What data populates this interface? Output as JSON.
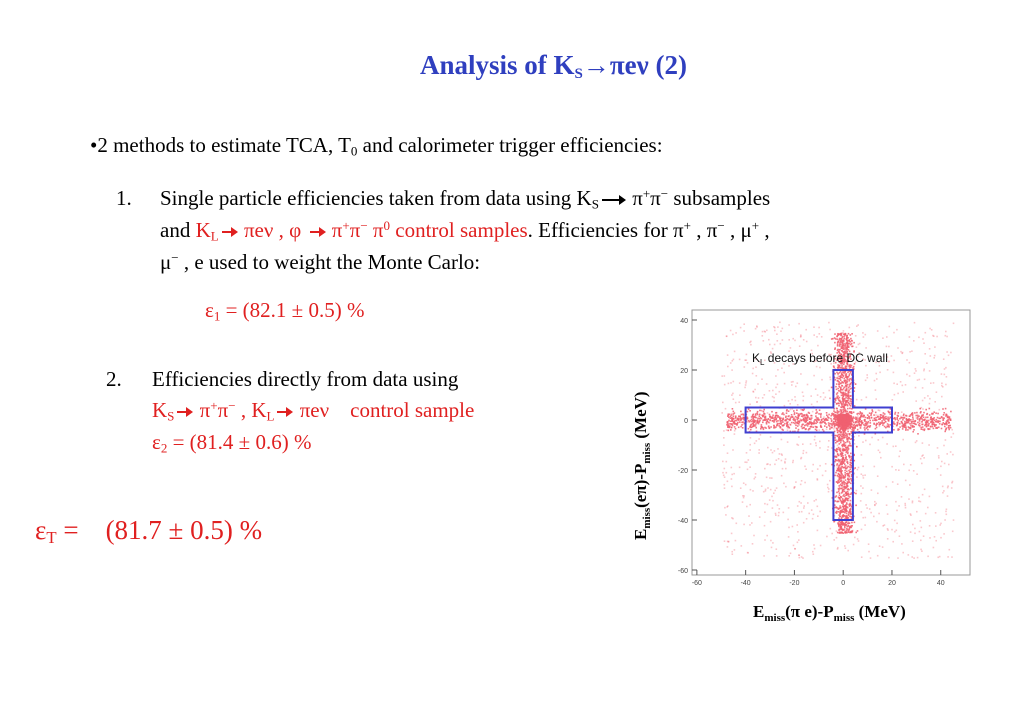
{
  "title": {
    "prefix": "Analysis of K",
    "sub": "S",
    "suffix": "→πeν (2)"
  },
  "intro": {
    "text": "•2 methods to estimate TCA, T",
    "sub": "0",
    "rest": " and calorimeter trigger efficiencies:"
  },
  "item1": {
    "num": "1.",
    "l1a": "Single particle efficiencies taken from data using K",
    "l1sub": "S",
    "l1b": "π",
    "l1c": "+",
    "l1d": "π",
    "l1e": "−",
    "l1f": " subsamples",
    "l2a": "and ",
    "l2b": "K",
    "l2sub": "L",
    "l2c": "πeν , φ",
    "l2d": "π",
    "l2e": "+",
    "l2f": "π",
    "l2g": "−",
    "l2h": " π",
    "l2i": "0",
    "l2j": " control samples",
    "l2k": ". Efficiencies for π",
    "l2l": "+",
    "l2m": " , π",
    "l2n": "−",
    "l2o": " , μ",
    "l2p": "+",
    "l2q": " ,",
    "l3a": "μ",
    "l3b": "−",
    "l3c": " , e    used to weight the Monte Carlo:"
  },
  "eps1": {
    "a": "ε",
    "sub": "1",
    "b": " = (82.1 ± 0.5) %"
  },
  "item2": {
    "num": "2.",
    "l1": "Efficiencies directly from data using",
    "l2a": "K",
    "l2sub": "S",
    "l2b": "π",
    "l2c": "+",
    "l2d": "π",
    "l2e": "−",
    "l2f": " , K",
    "l2sub2": "L",
    "l2g": "πeν",
    "l2h": "control sample",
    "l3a": "ε",
    "l3sub": "2",
    "l3b": " =    (81.4 ± 0.6) %"
  },
  "epsT": {
    "a": "ε",
    "sub": "T",
    "b": " = ",
    "c": "(81.7 ± 0.5) %"
  },
  "plot": {
    "label_text": "K",
    "label_sub": "L",
    "label_rest": " decays before DC wall",
    "ylabel": {
      "a": "E",
      "sub1": "miss",
      "b": "(eπ)-P",
      "sub2": "miss",
      "c": " (MeV)"
    },
    "xlabel": {
      "a": "E",
      "sub1": "miss",
      "b": "(π e)-P",
      "sub2": "miss",
      "c": " (MeV)"
    },
    "xticks": [
      "-60",
      "-40",
      "-20",
      "0",
      "20",
      "40"
    ],
    "yticks": [
      "40",
      "20",
      "0",
      "-20",
      "-40",
      "-60"
    ],
    "colors": {
      "points": "#f06070",
      "box": "#3f3fd0",
      "text_red": "#e02020",
      "title": "#2f3fbf"
    }
  }
}
